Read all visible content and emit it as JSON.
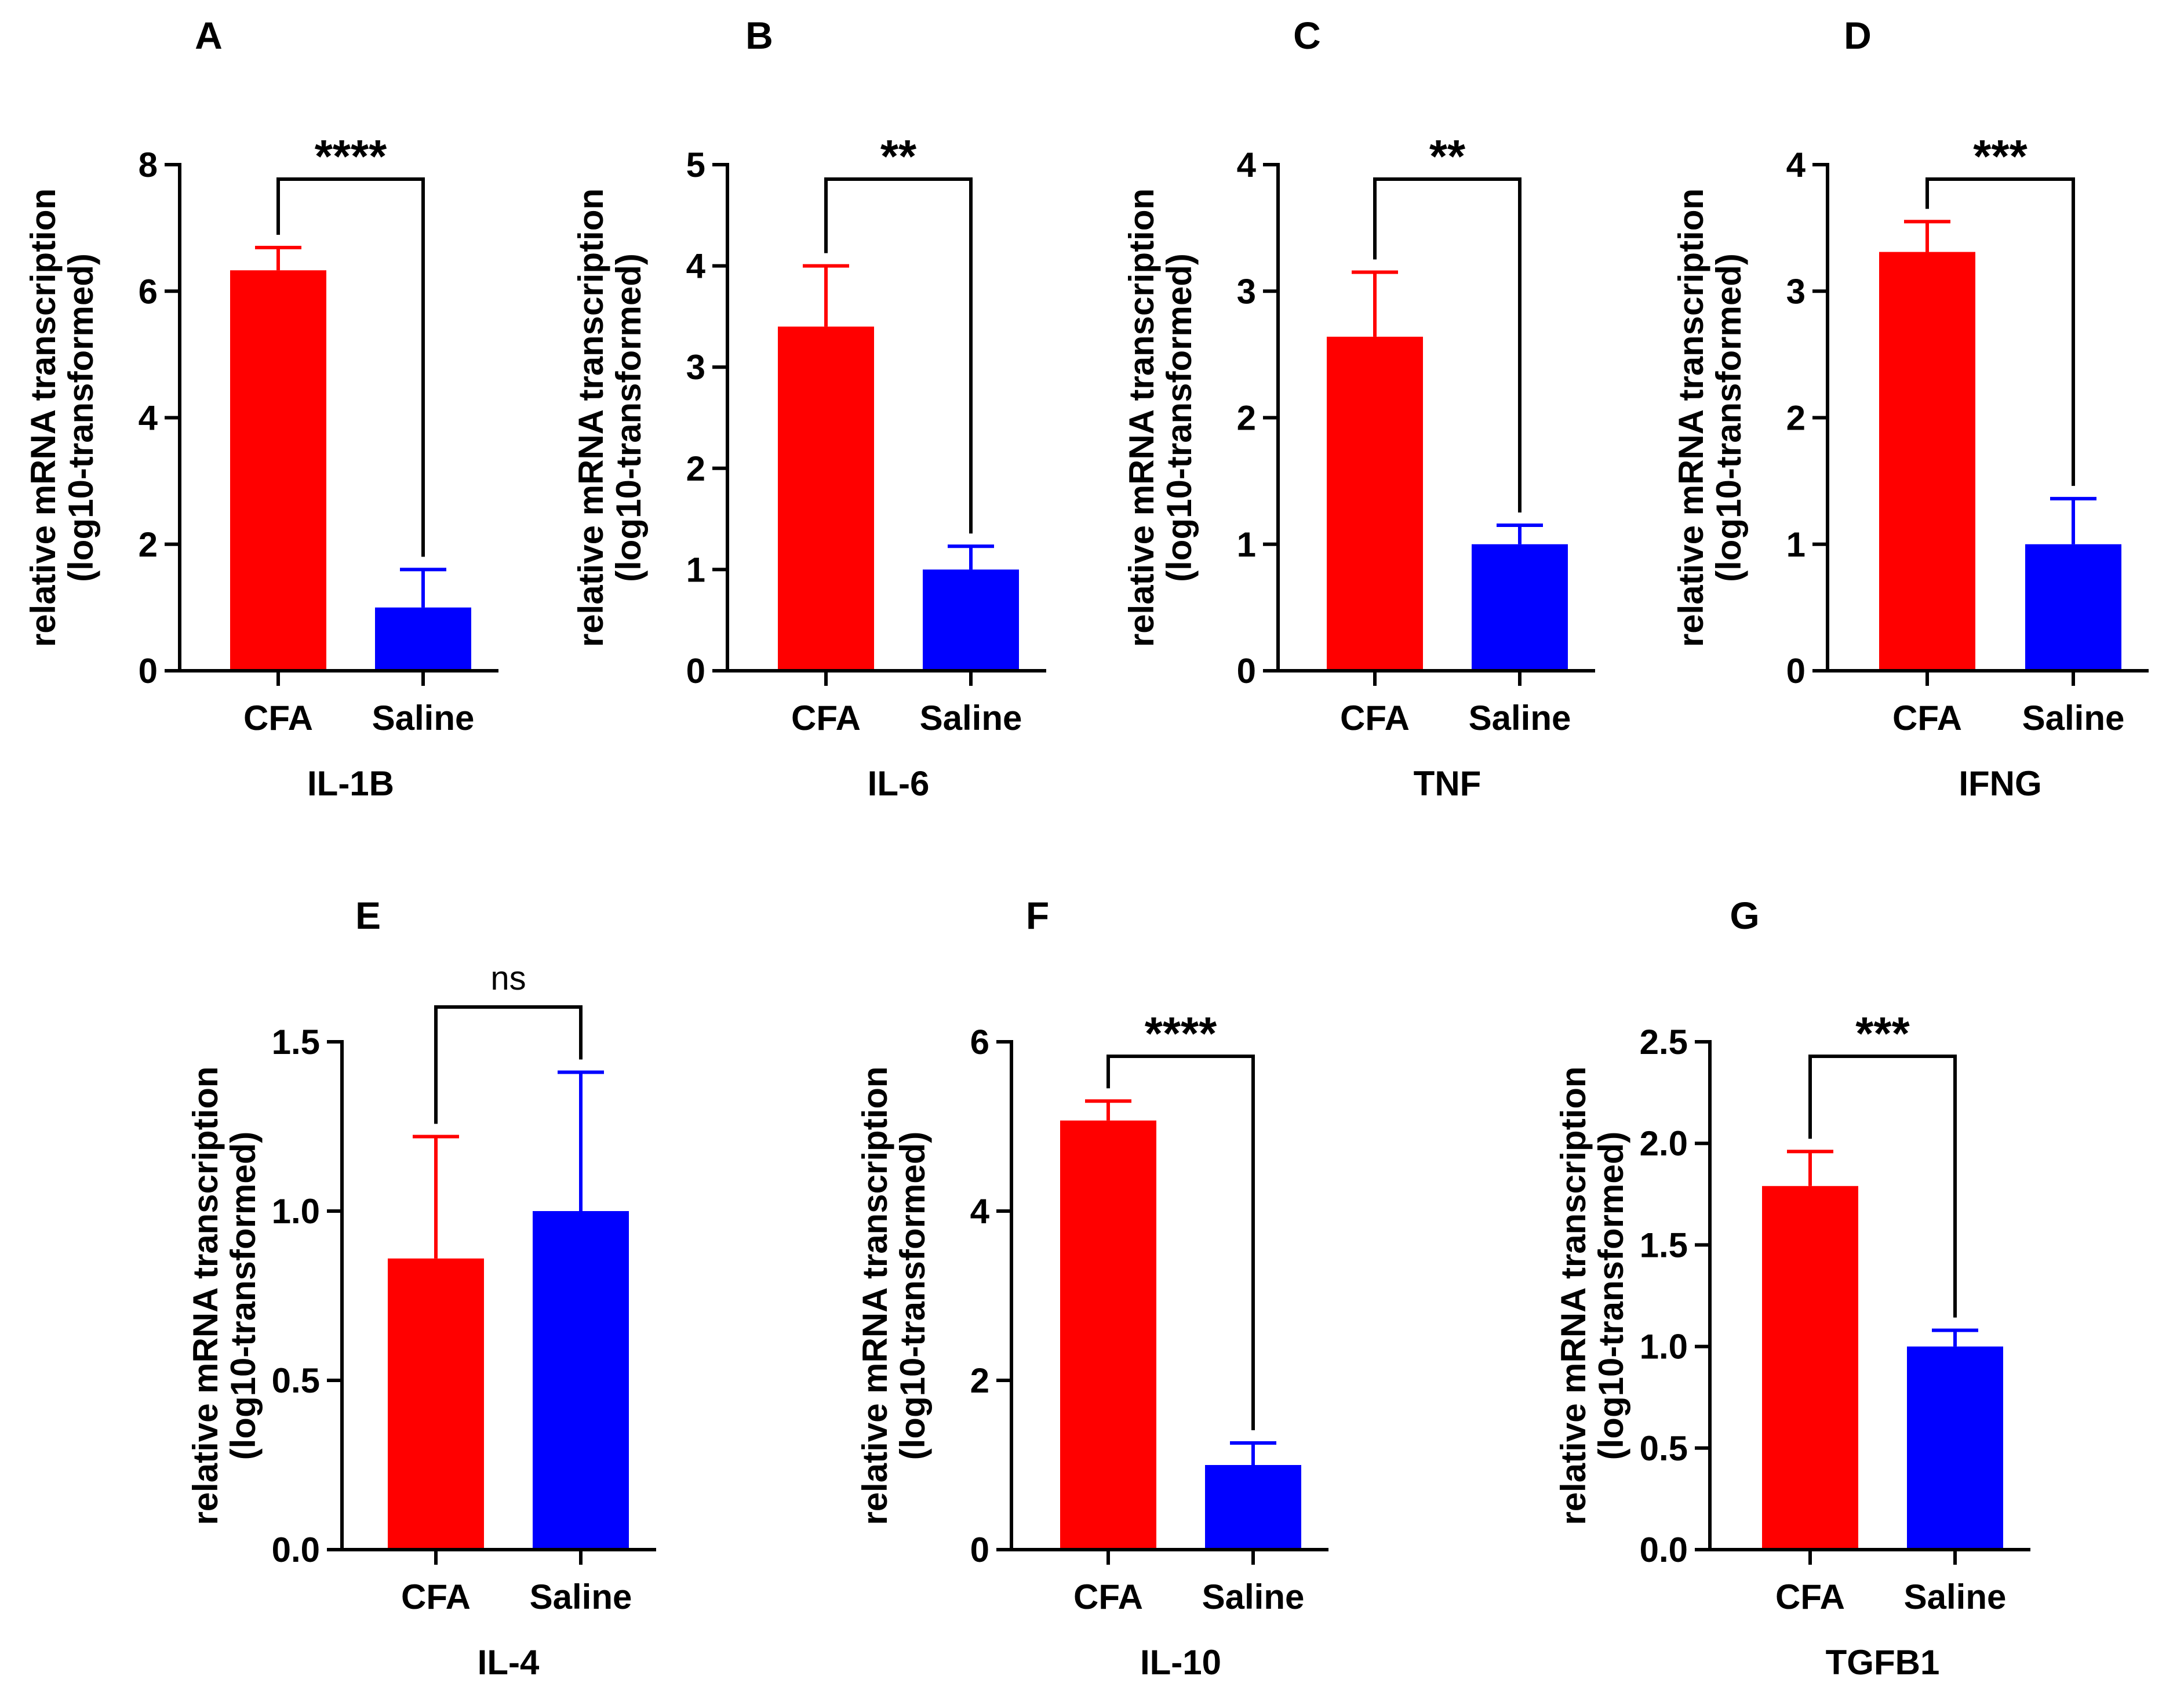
{
  "figure": {
    "description_free": true
  },
  "colors": {
    "cfa": "#ff0000",
    "saline": "#0000ff",
    "axis": "#000000"
  },
  "chart_data": [
    {
      "type": "bar",
      "panel_letter": "A",
      "gene": "IL-1B",
      "ylabel_line1": "relative mRNA transcription",
      "ylabel_line2": "(log10-transformed)",
      "categories": [
        "CFA",
        "Saline"
      ],
      "values": [
        6.33,
        1.0
      ],
      "errors": [
        0.36,
        0.6
      ],
      "ylim": [
        0,
        8
      ],
      "yticks": [
        "0",
        "2",
        "4",
        "6",
        "8"
      ],
      "significance": "****"
    },
    {
      "type": "bar",
      "panel_letter": "B",
      "gene": "IL-6",
      "ylabel_line1": "relative mRNA transcription",
      "ylabel_line2": "(log10-transformed)",
      "categories": [
        "CFA",
        "Saline"
      ],
      "values": [
        3.4,
        1.0
      ],
      "errors": [
        0.6,
        0.23
      ],
      "ylim": [
        0,
        5
      ],
      "yticks": [
        "0",
        "1",
        "2",
        "3",
        "4",
        "5"
      ],
      "significance": "**"
    },
    {
      "type": "bar",
      "panel_letter": "C",
      "gene": "TNF",
      "ylabel_line1": "relative mRNA transcription",
      "ylabel_line2": "(log10-transformed)",
      "categories": [
        "CFA",
        "Saline"
      ],
      "values": [
        2.64,
        1.0
      ],
      "errors": [
        0.51,
        0.15
      ],
      "ylim": [
        0,
        4
      ],
      "yticks": [
        "0",
        "1",
        "2",
        "3",
        "4"
      ],
      "significance": "**"
    },
    {
      "type": "bar",
      "panel_letter": "D",
      "gene": "IFNG",
      "ylabel_line1": "relative mRNA transcription",
      "ylabel_line2": "(log10-transformed)",
      "categories": [
        "CFA",
        "Saline"
      ],
      "values": [
        3.31,
        1.0
      ],
      "errors": [
        0.24,
        0.36
      ],
      "ylim": [
        0,
        4
      ],
      "yticks": [
        "0",
        "1",
        "2",
        "3",
        "4"
      ],
      "significance": "***"
    },
    {
      "type": "bar",
      "panel_letter": "E",
      "gene": "IL-4",
      "ylabel_line1": "relative mRNA transcription",
      "ylabel_line2": "(log10-transformed)",
      "categories": [
        "CFA",
        "Saline"
      ],
      "values": [
        0.86,
        1.0
      ],
      "errors": [
        0.36,
        0.41
      ],
      "ylim": [
        0,
        1.5
      ],
      "yticks": [
        "0.0",
        "0.5",
        "1.0",
        "1.5"
      ],
      "significance": "ns"
    },
    {
      "type": "bar",
      "panel_letter": "F",
      "gene": "IL-10",
      "ylabel_line1": "relative mRNA transcription",
      "ylabel_line2": "(log10-transformed)",
      "categories": [
        "CFA",
        "Saline"
      ],
      "values": [
        5.07,
        1.0
      ],
      "errors": [
        0.23,
        0.26
      ],
      "ylim": [
        0,
        6
      ],
      "yticks": [
        "0",
        "2",
        "4",
        "6"
      ],
      "significance": "****"
    },
    {
      "type": "bar",
      "panel_letter": "G",
      "gene": "TGFB1",
      "ylabel_line1": "relative mRNA transcription",
      "ylabel_line2": "(log10-transformed)",
      "categories": [
        "CFA",
        "Saline"
      ],
      "values": [
        1.79,
        1.0
      ],
      "errors": [
        0.17,
        0.08
      ],
      "ylim": [
        0,
        2.5
      ],
      "yticks": [
        "0.0",
        "0.5",
        "1.0",
        "1.5",
        "2.0",
        "2.5"
      ],
      "significance": "***"
    }
  ]
}
